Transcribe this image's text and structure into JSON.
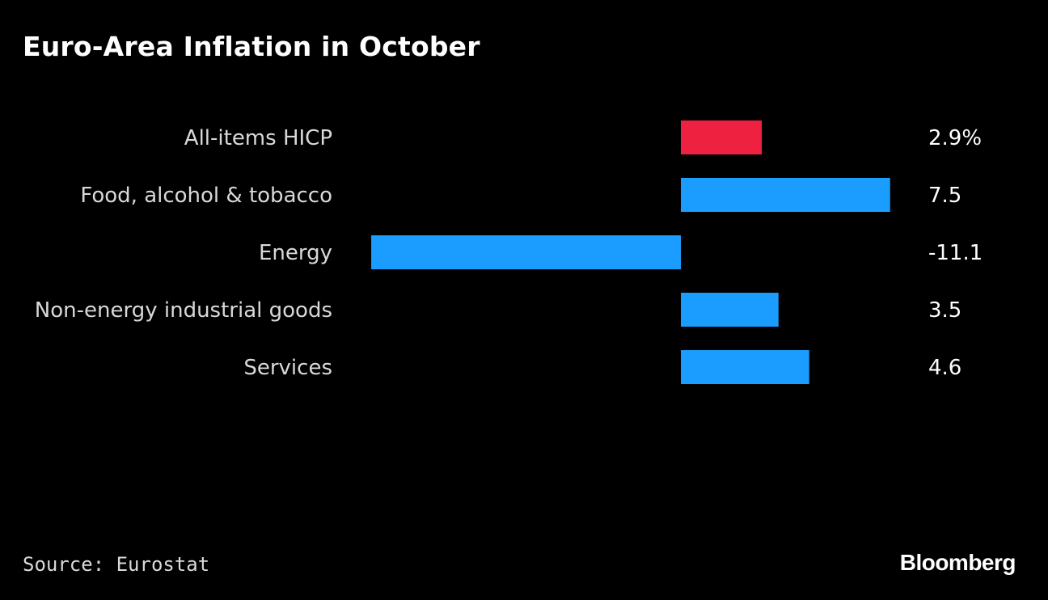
{
  "chart_data": {
    "type": "bar",
    "orientation": "horizontal",
    "title": "Euro-Area Inflation in October",
    "categories": [
      "All-items HICP",
      "Food, alcohol & tobacco",
      "Energy",
      "Non-energy industrial goods",
      "Services"
    ],
    "values": [
      2.9,
      7.5,
      -11.1,
      3.5,
      4.6
    ],
    "value_labels": [
      "2.9%",
      "7.5",
      "-11.1",
      "3.5",
      "4.6"
    ],
    "colors": [
      "#ee2240",
      "#1a9dff",
      "#1a9dff",
      "#1a9dff",
      "#1a9dff"
    ],
    "grid": false,
    "legend": "none"
  },
  "source": "Source: Eurostat",
  "brand": "Bloomberg"
}
